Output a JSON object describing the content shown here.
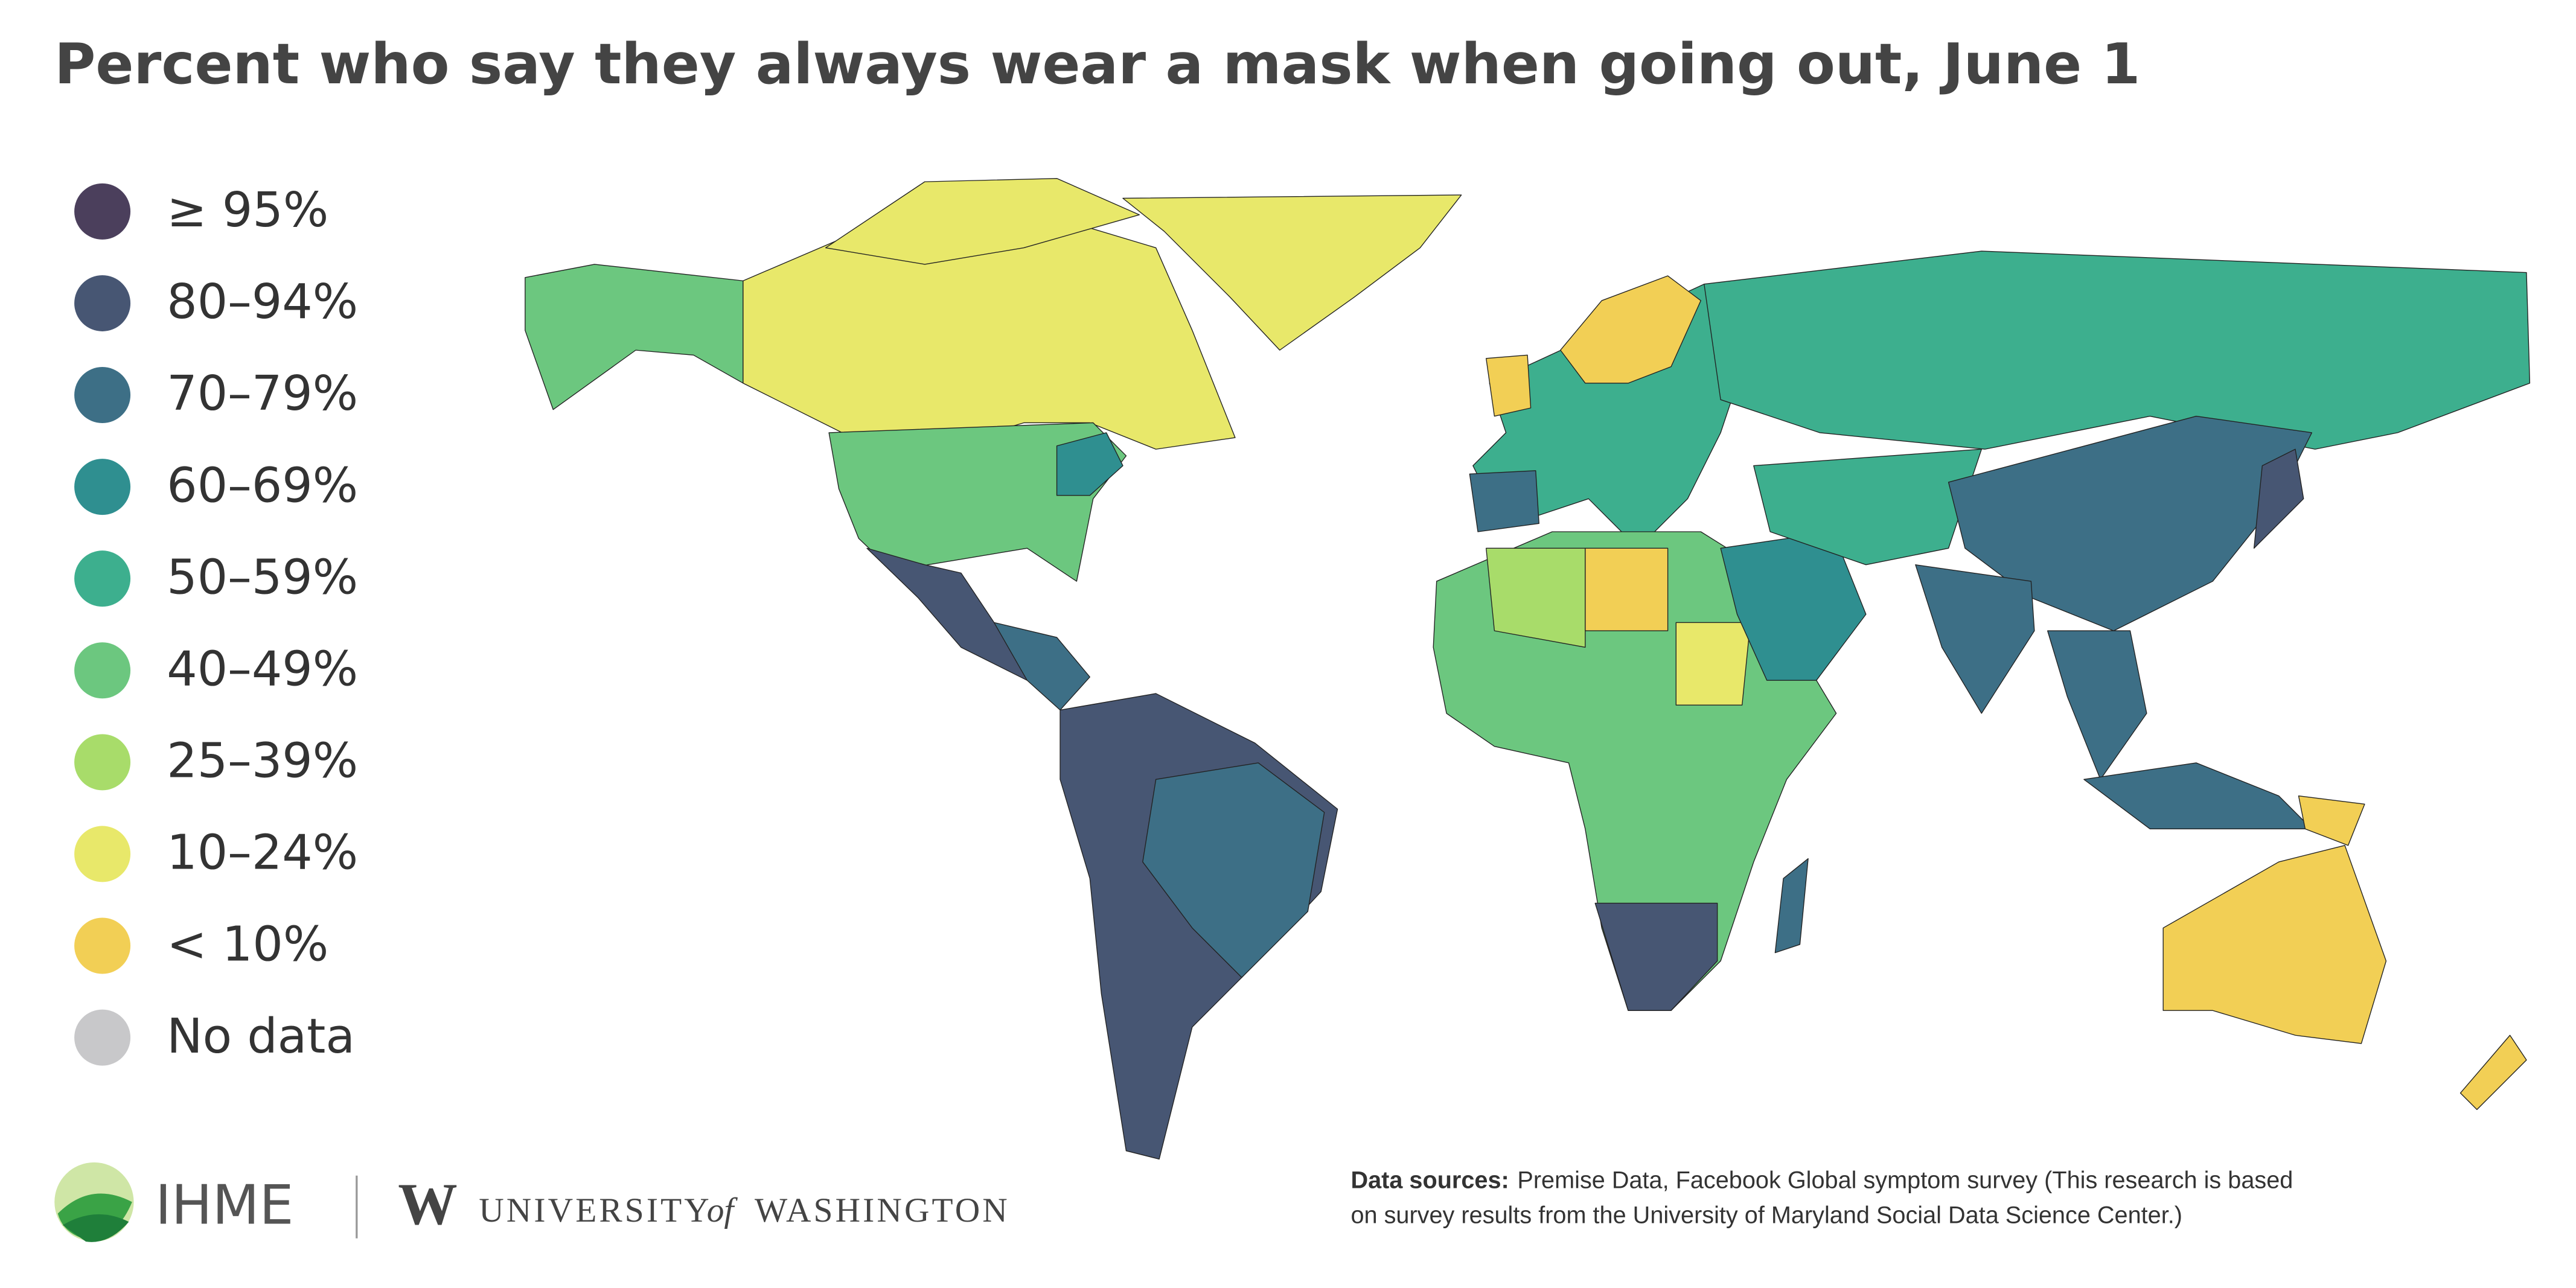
{
  "title": "Percent who say they always wear a mask when going out, June 1",
  "legend": {
    "items": [
      {
        "label": "≥ 95%",
        "color": "#4b3f5c"
      },
      {
        "label": "80–94%",
        "color": "#475673"
      },
      {
        "label": "70–79%",
        "color": "#3d6f86"
      },
      {
        "label": "60–69%",
        "color": "#2f8f90"
      },
      {
        "label": "50–59%",
        "color": "#3daf8e"
      },
      {
        "label": "40–49%",
        "color": "#6cc77f"
      },
      {
        "label": "25–39%",
        "color": "#a8dc6a"
      },
      {
        "label": "10–24%",
        "color": "#e8e86a"
      },
      {
        "label": "< 10%",
        "color": "#f2cf55"
      },
      {
        "label": "No data",
        "color": "#c8c8ca"
      }
    ]
  },
  "footer": {
    "ihme": "IHME",
    "uw_mark": "W",
    "university": "UNIVERSITY",
    "of": "of",
    "washington": "WASHINGTON",
    "sources_label": "Data sources:",
    "sources_lines": [
      "Premise Data, Facebook Global symptom survey (This research is based",
      "on survey results from the University of Maryland Social Data Science Center.)"
    ]
  }
}
